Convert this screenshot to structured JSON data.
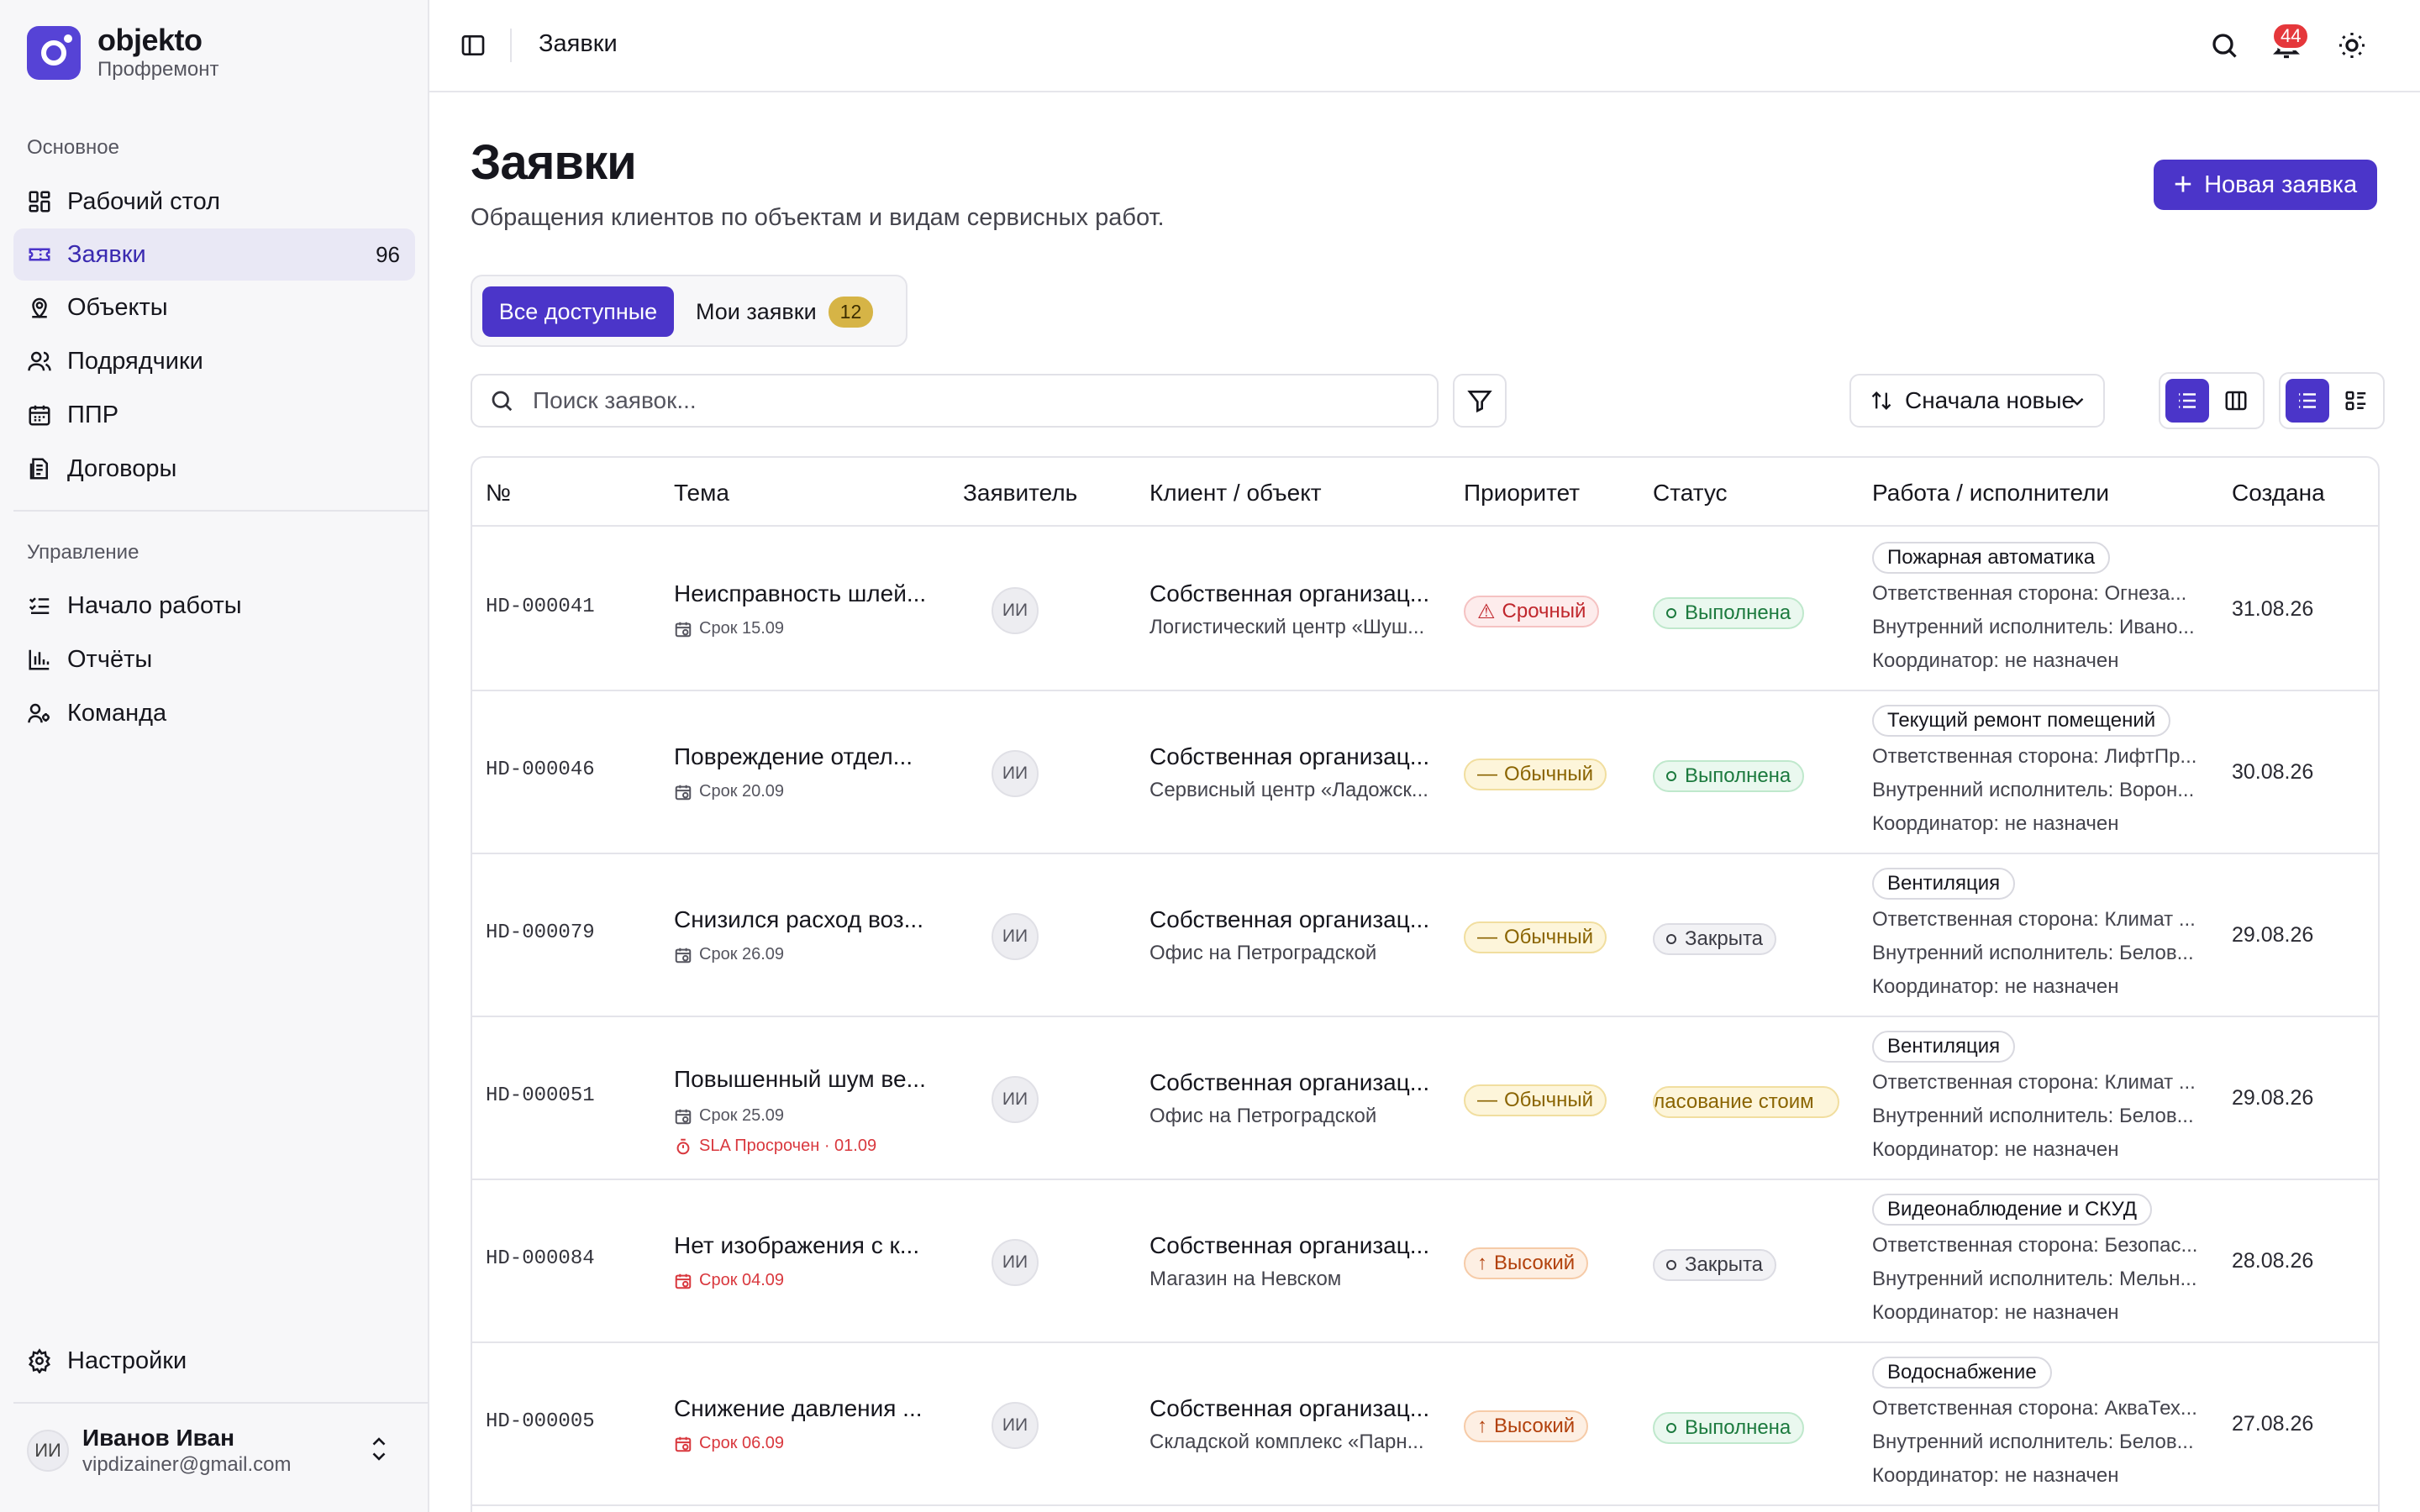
{
  "brand": {
    "name": "objekto",
    "subtitle": "Профремонт"
  },
  "sidebar": {
    "section_main": "Основное",
    "main_items": [
      {
        "label": "Рабочий стол",
        "icon": "dashboard-icon"
      },
      {
        "label": "Заявки",
        "icon": "ticket-icon",
        "count": "96",
        "active": true
      },
      {
        "label": "Объекты",
        "icon": "map-pin-icon"
      },
      {
        "label": "Подрядчики",
        "icon": "users-icon"
      },
      {
        "label": "ППР",
        "icon": "calendar-icon"
      },
      {
        "label": "Договоры",
        "icon": "document-icon"
      }
    ],
    "section_manage": "Управление",
    "manage_items": [
      {
        "label": "Начало работы",
        "icon": "checklist-icon"
      },
      {
        "label": "Отчёты",
        "icon": "bar-chart-icon"
      },
      {
        "label": "Команда",
        "icon": "team-icon"
      }
    ],
    "settings_label": "Настройки",
    "user": {
      "initials": "ИИ",
      "name": "Иванов Иван",
      "email": "vipdizainer@gmail.com"
    }
  },
  "topbar": {
    "breadcrumb": "Заявки",
    "notifications_count": "44"
  },
  "page": {
    "title": "Заявки",
    "subtitle": "Обращения клиентов по объектам и видам сервисных работ.",
    "new_button": "Новая заявка"
  },
  "tabs": {
    "all": "Все доступные",
    "mine": "Мои заявки",
    "mine_count": "12"
  },
  "search": {
    "placeholder": "Поиск заявок..."
  },
  "sort": {
    "value": "Сначала новые"
  },
  "table": {
    "headers": [
      "№",
      "Тема",
      "Заявитель",
      "Клиент / объект",
      "Приоритет",
      "Статус",
      "Работа / исполнители",
      "Создана"
    ],
    "rows": [
      {
        "id": "HD-000041",
        "topic": "Неисправность шлей...",
        "due": "Срок 15.09",
        "due_overdue": false,
        "sla": "",
        "requester": "ИИ",
        "client": "Собственная организац...",
        "object": "Логистический центр «Шуш...",
        "priority": "Срочный",
        "priority_kind": "urgent",
        "priority_icon": "⚠",
        "status": "Выполнена",
        "status_kind": "done",
        "work": "Пожарная автоматика",
        "responsible": "Ответственная сторона: Огнеза...",
        "internal": "Внутренний исполнитель: Ивано...",
        "coordinator": "Координатор: не назначен",
        "created": "31.08.26"
      },
      {
        "id": "HD-000046",
        "topic": "Повреждение отдел...",
        "due": "Срок 20.09",
        "due_overdue": false,
        "sla": "",
        "requester": "ИИ",
        "client": "Собственная организац...",
        "object": "Сервисный центр «Ладожск...",
        "priority": "Обычный",
        "priority_kind": "normal",
        "priority_icon": "—",
        "status": "Выполнена",
        "status_kind": "done",
        "work": "Текущий ремонт помещений",
        "responsible": "Ответственная сторона: ЛифтПр...",
        "internal": "Внутренний исполнитель: Ворон...",
        "coordinator": "Координатор: не назначен",
        "created": "30.08.26"
      },
      {
        "id": "HD-000079",
        "topic": "Снизился расход воз...",
        "due": "Срок 26.09",
        "due_overdue": false,
        "sla": "",
        "requester": "ИИ",
        "client": "Собственная организац...",
        "object": "Офис на Петроградской",
        "priority": "Обычный",
        "priority_kind": "normal",
        "priority_icon": "—",
        "status": "Закрыта",
        "status_kind": "closed",
        "work": "Вентиляция",
        "responsible": "Ответственная сторона: Климат ...",
        "internal": "Внутренний исполнитель: Белов...",
        "coordinator": "Координатор: не назначен",
        "created": "29.08.26"
      },
      {
        "id": "HD-000051",
        "topic": "Повышенный шум ве...",
        "due": "Срок 25.09",
        "due_overdue": false,
        "sla": "SLA Просрочен · 01.09",
        "requester": "ИИ",
        "client": "Собственная организац...",
        "object": "Офис на Петроградской",
        "priority": "Обычный",
        "priority_kind": "normal",
        "priority_icon": "—",
        "status": "гласование стоим",
        "status_kind": "approval",
        "work": "Вентиляция",
        "responsible": "Ответственная сторона: Климат ...",
        "internal": "Внутренний исполнитель: Белов...",
        "coordinator": "Координатор: не назначен",
        "created": "29.08.26"
      },
      {
        "id": "HD-000084",
        "topic": "Нет изображения с к...",
        "due": "Срок 04.09",
        "due_overdue": true,
        "sla": "",
        "requester": "ИИ",
        "client": "Собственная организац...",
        "object": "Магазин на Невском",
        "priority": "Высокий",
        "priority_kind": "high",
        "priority_icon": "↑",
        "status": "Закрыта",
        "status_kind": "closed",
        "work": "Видеонаблюдение и СКУД",
        "responsible": "Ответственная сторона: Безопас...",
        "internal": "Внутренний исполнитель: Мельн...",
        "coordinator": "Координатор: не назначен",
        "created": "28.08.26"
      },
      {
        "id": "HD-000005",
        "topic": "Снижение давления ...",
        "due": "Срок 06.09",
        "due_overdue": true,
        "sla": "",
        "requester": "ИИ",
        "client": "Собственная организац...",
        "object": "Складской комплекс «Парн...",
        "priority": "Высокий",
        "priority_kind": "high",
        "priority_icon": "↑",
        "status": "Выполнена",
        "status_kind": "done",
        "work": "Водоснабжение",
        "responsible": "Ответственная сторона: АкваТех...",
        "internal": "Внутренний исполнитель: Белов...",
        "coordinator": "Координатор: не назначен",
        "created": "27.08.26"
      }
    ]
  },
  "colors": {
    "accent": "#4b35c9",
    "logo": "#5643d6",
    "badge": "#e5373b",
    "overdue": "#d9383e"
  }
}
